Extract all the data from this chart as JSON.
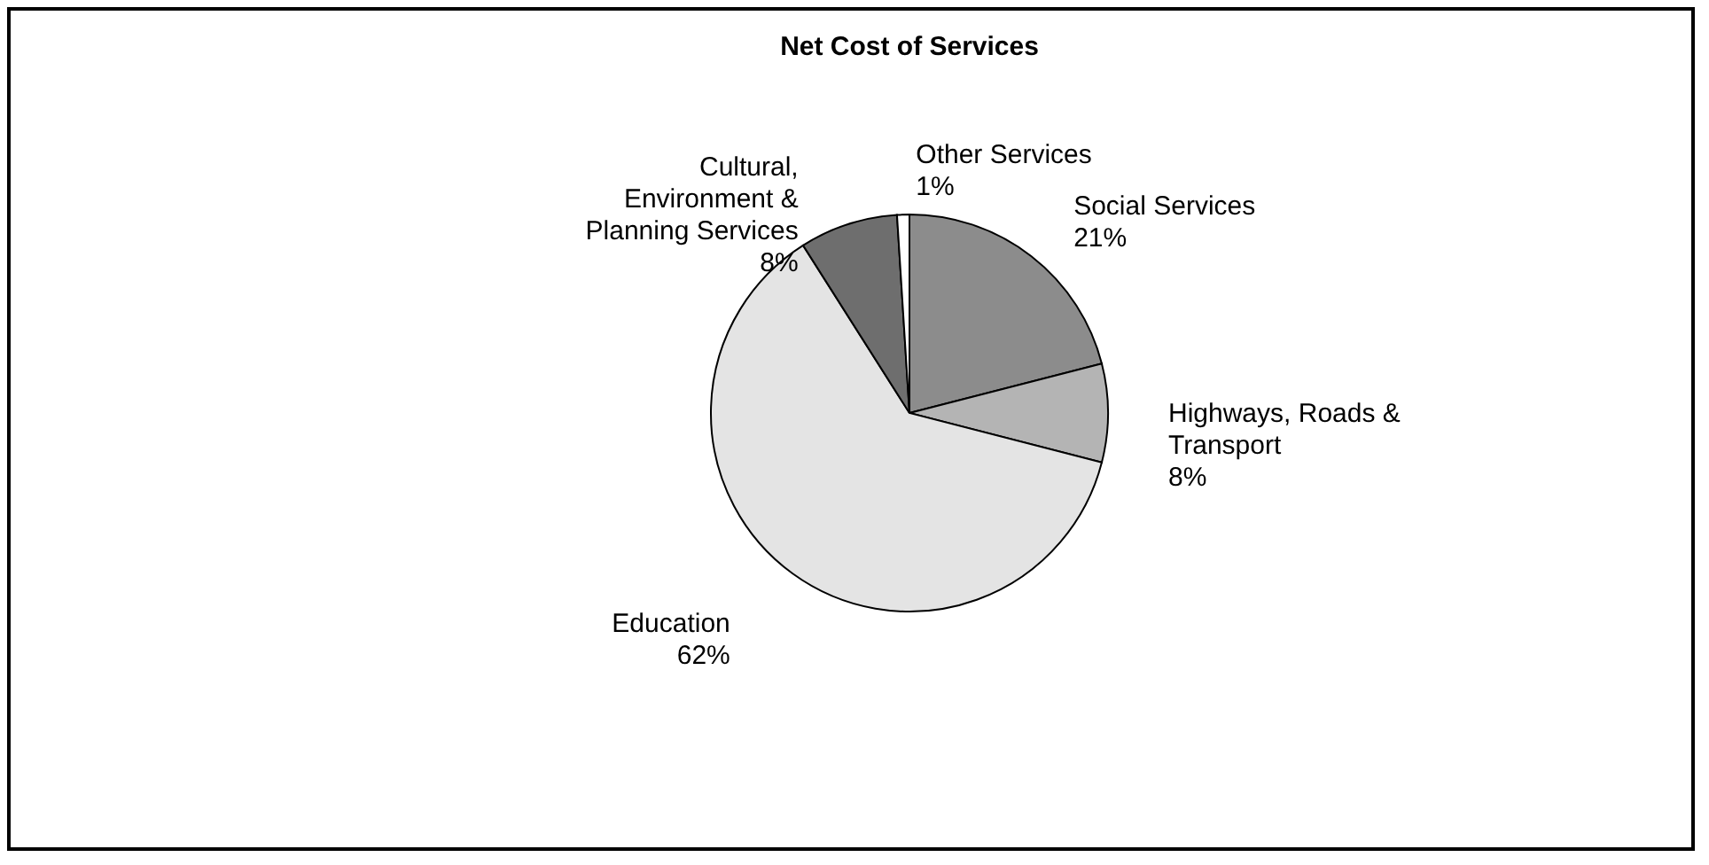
{
  "chart_data": {
    "type": "pie",
    "title": "Net Cost of Services",
    "categories": [
      "Social Services",
      "Highways, Roads & Transport",
      "Education",
      "Cultural, Environment & Planning Services",
      "Other Services"
    ],
    "values": [
      21,
      8,
      62,
      8,
      1
    ],
    "value_labels": [
      "21%",
      "8%",
      "62%",
      "8%",
      "1%"
    ],
    "colors": [
      "#8c8c8c",
      "#b4b4b4",
      "#e4e4e4",
      "#6e6e6e",
      "#ffffff"
    ],
    "legend": false
  }
}
